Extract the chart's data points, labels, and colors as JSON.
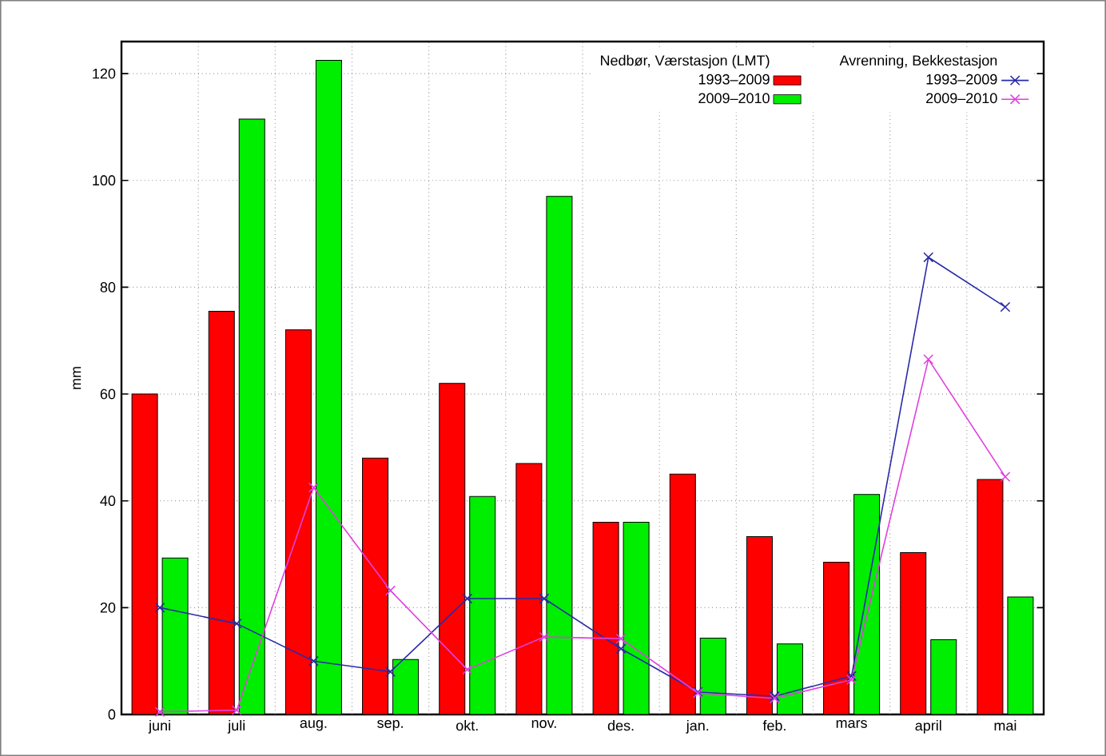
{
  "chart_data": {
    "type": "bar",
    "ylabel": "mm",
    "legend_title": "Nedbør, Værstasjon (LMT)",
    "annotations": [
      "Avrenning, Bekkestasjon"
    ],
    "categories": [
      "juni",
      "juli",
      "aug.",
      "sep.",
      "okt.",
      "nov.",
      "des.",
      "jan.",
      "feb.",
      "mars",
      "april",
      "mai"
    ],
    "series": [
      {
        "name": "1993–2009",
        "color": "#ff0000",
        "values": [
          60,
          75.5,
          72,
          48,
          62,
          47,
          36,
          45,
          33.3,
          28.5,
          30.3,
          44
        ]
      },
      {
        "name": "2009–2010",
        "color": "#00ee00",
        "values": [
          29.3,
          111.5,
          122.5,
          10.3,
          40.8,
          97,
          36,
          14.3,
          13.2,
          41.2,
          14,
          22
        ]
      },
      {
        "name": "1993–2009",
        "type": "line",
        "color": "#2a2aa8",
        "marker": "cross",
        "values": [
          20,
          17,
          10,
          8,
          21.7,
          21.7,
          12.3,
          4.2,
          3.4,
          7.2,
          85.6,
          76.3
        ]
      },
      {
        "name": "2009–2010",
        "type": "line",
        "color": "#e040e0",
        "marker": "cross",
        "values": [
          0.5,
          0.8,
          42.5,
          23.2,
          8.4,
          14.5,
          14.2,
          4.0,
          3.0,
          6.5,
          66.5,
          44.5
        ]
      }
    ],
    "ylim": [
      0,
      126
    ],
    "yticks": [
      0,
      20,
      40,
      60,
      80,
      100,
      120
    ],
    "grid": true,
    "legend": "top right"
  }
}
